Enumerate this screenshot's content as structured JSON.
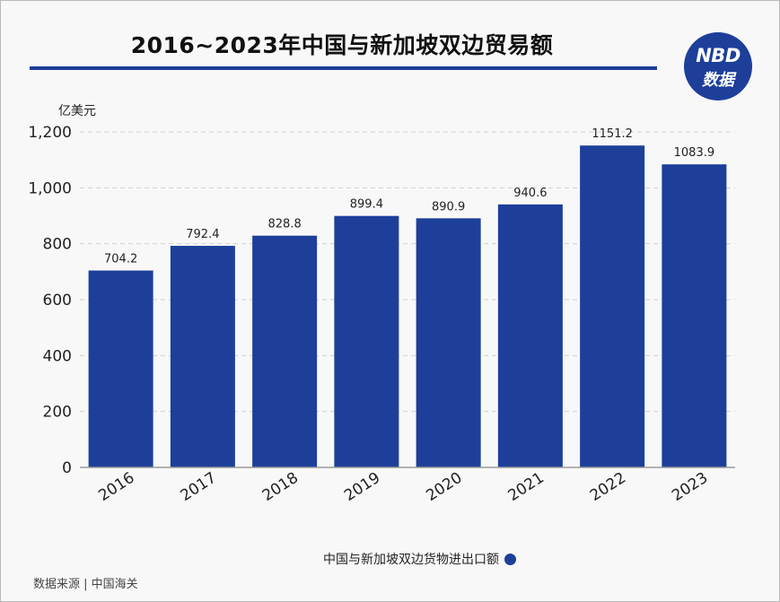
{
  "header": {
    "title": "2016~2023年中国与新加坡双边贸易额",
    "logo_line1": "NBD",
    "logo_line2": "数据"
  },
  "footer": {
    "source": "数据来源 | 中国海关"
  },
  "colors": {
    "bar": "#1d3f9a",
    "rule": "#1d3f9a",
    "grid": "#cfcfcf"
  },
  "chart_data": {
    "type": "bar",
    "title": "2016~2023年中国与新加坡双边贸易额",
    "ylabel": "亿美元",
    "xlabel": "",
    "categories": [
      "2016",
      "2017",
      "2018",
      "2019",
      "2020",
      "2021",
      "2022",
      "2023"
    ],
    "series": [
      {
        "name": "中国与新加坡双边货物进出口额",
        "values": [
          704.2,
          792.4,
          828.8,
          899.4,
          890.9,
          940.6,
          1151.2,
          1083.9
        ]
      }
    ],
    "value_labels": [
      "704.2",
      "792.4",
      "828.8",
      "899.4",
      "890.9",
      "940.6",
      "1151.2",
      "1083.9"
    ],
    "ylim": [
      0,
      1200
    ],
    "yticks": [
      0,
      200,
      400,
      600,
      800,
      1000,
      1200
    ],
    "ytick_labels": [
      "0",
      "200",
      "400",
      "600",
      "800",
      "1,000",
      "1,200"
    ],
    "grid": true,
    "legend_position": "bottom"
  }
}
